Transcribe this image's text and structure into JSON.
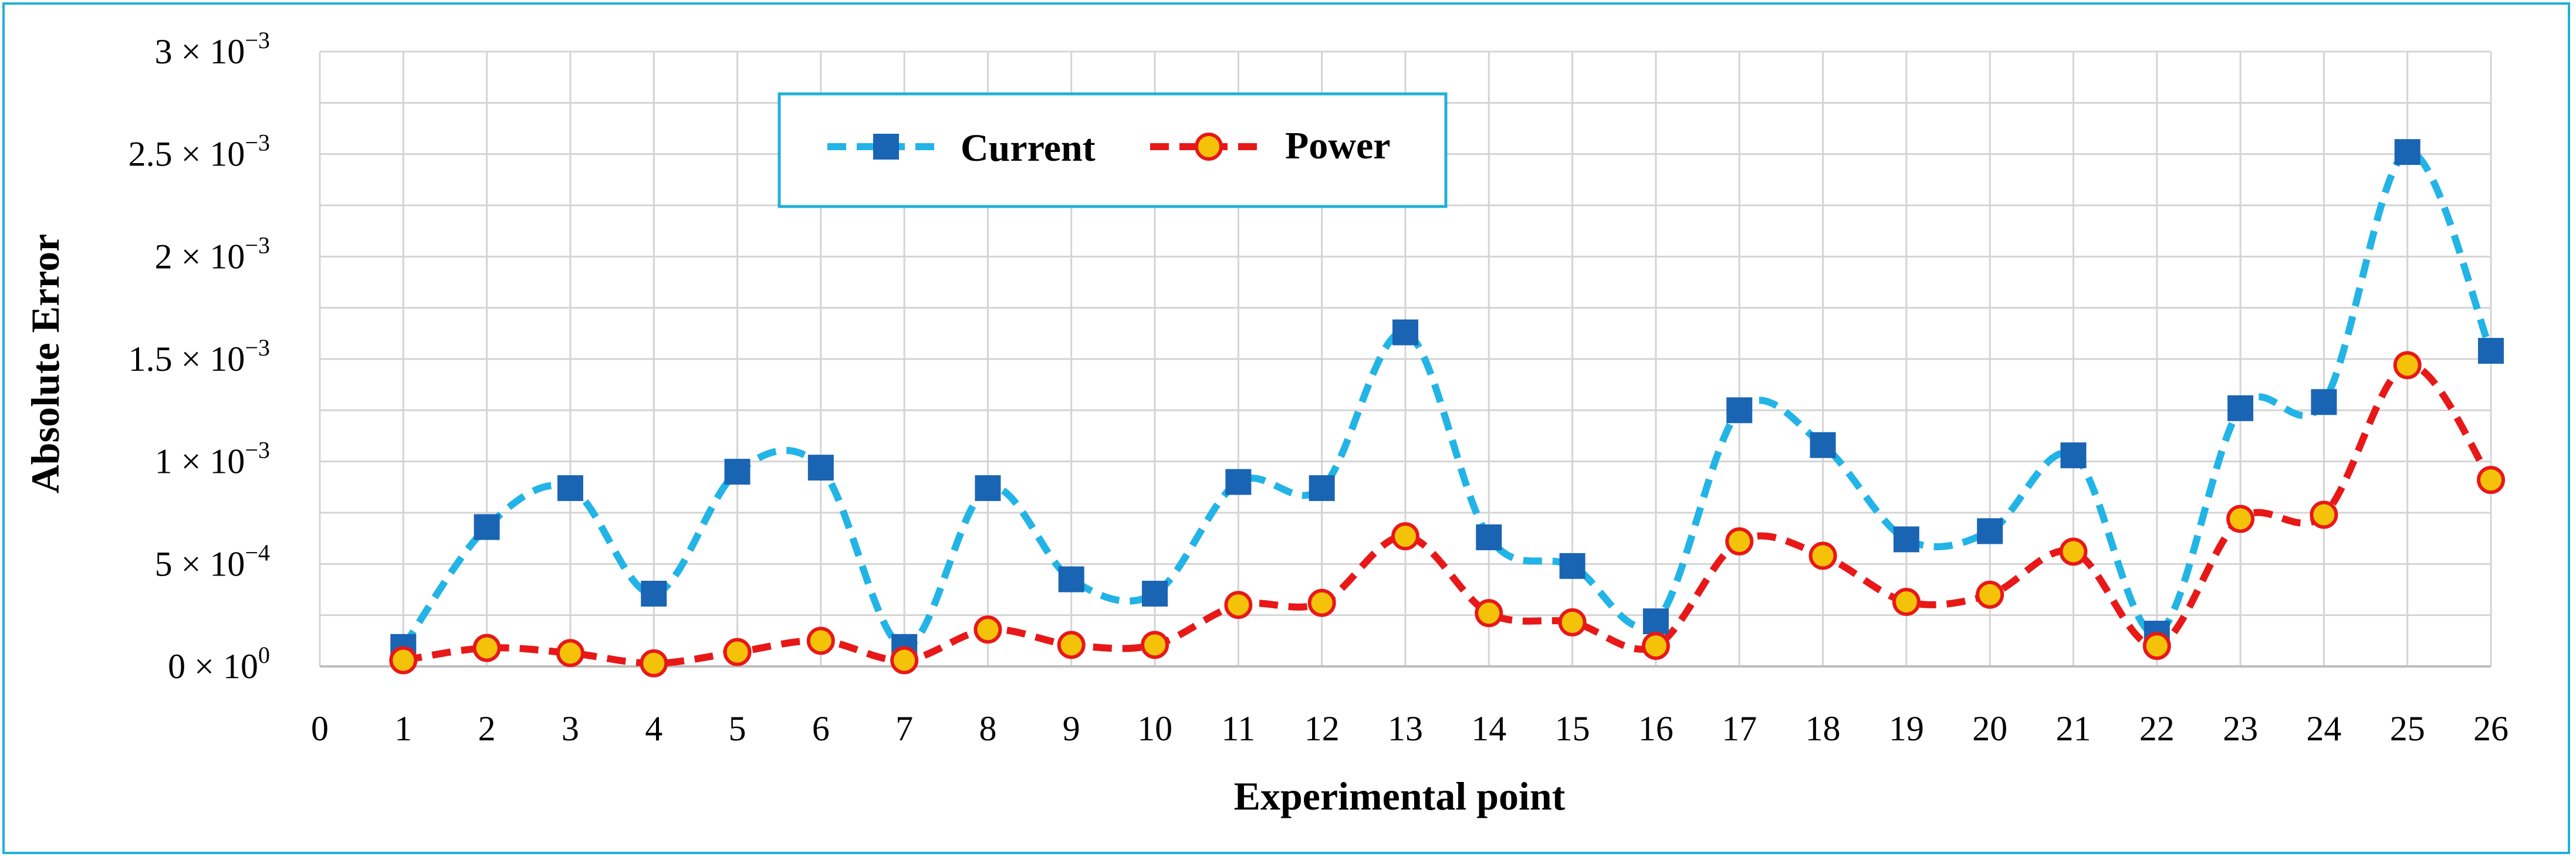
{
  "chart_data": {
    "type": "line",
    "title": "",
    "xlabel": "Experimental point",
    "ylabel": "Absolute Error",
    "xlim": [
      0,
      26
    ],
    "ylim": [
      0,
      0.003
    ],
    "x_ticks": [
      "0",
      "1",
      "2",
      "3",
      "4",
      "5",
      "6",
      "7",
      "8",
      "9",
      "10",
      "11",
      "12",
      "13",
      "14",
      "15",
      "16",
      "17",
      "18",
      "19",
      "20",
      "21",
      "22",
      "23",
      "24",
      "25",
      "26"
    ],
    "y_ticks": [
      {
        "value": 0,
        "mantissa": "0",
        "exponent": "0"
      },
      {
        "value": 0.0005,
        "mantissa": "5",
        "exponent": "−4"
      },
      {
        "value": 0.001,
        "mantissa": "1",
        "exponent": "−3"
      },
      {
        "value": 0.0015,
        "mantissa": "1.5",
        "exponent": "−3"
      },
      {
        "value": 0.002,
        "mantissa": "2",
        "exponent": "−3"
      },
      {
        "value": 0.0025,
        "mantissa": "2.5",
        "exponent": "−3"
      },
      {
        "value": 0.003,
        "mantissa": "3",
        "exponent": "−3"
      }
    ],
    "grid": true,
    "legend_position": "top-center-left",
    "x": [
      1,
      2,
      3,
      4,
      5,
      6,
      7,
      8,
      9,
      10,
      11,
      12,
      13,
      14,
      15,
      16,
      17,
      18,
      19,
      20,
      21,
      22,
      23,
      24,
      25,
      26
    ],
    "series": [
      {
        "name": "Current",
        "color": "#22b4e6",
        "marker": "square",
        "marker_color": "#1a64b4",
        "values": [
          9.5e-05,
          0.00068,
          0.00087,
          0.000355,
          0.00095,
          0.00097,
          9.5e-05,
          0.00087,
          0.000425,
          0.000355,
          0.0009,
          0.00087,
          0.00163,
          0.00063,
          0.00049,
          0.00022,
          0.00125,
          0.00108,
          0.00062,
          0.00066,
          0.00103,
          0.00016,
          0.00126,
          0.00129,
          0.00251,
          0.00154
        ]
      },
      {
        "name": "Power",
        "color": "#e81818",
        "marker": "circle",
        "marker_color": "#f5c20a",
        "values": [
          3e-05,
          9e-05,
          6.5e-05,
          1.5e-05,
          7e-05,
          0.000125,
          3e-05,
          0.00018,
          0.000105,
          0.000105,
          0.0003,
          0.00031,
          0.000635,
          0.00026,
          0.000215,
          0.0001,
          0.00061,
          0.00054,
          0.000315,
          0.00035,
          0.00056,
          0.0001,
          0.00072,
          0.00074,
          0.00147,
          0.00091
        ]
      }
    ]
  }
}
